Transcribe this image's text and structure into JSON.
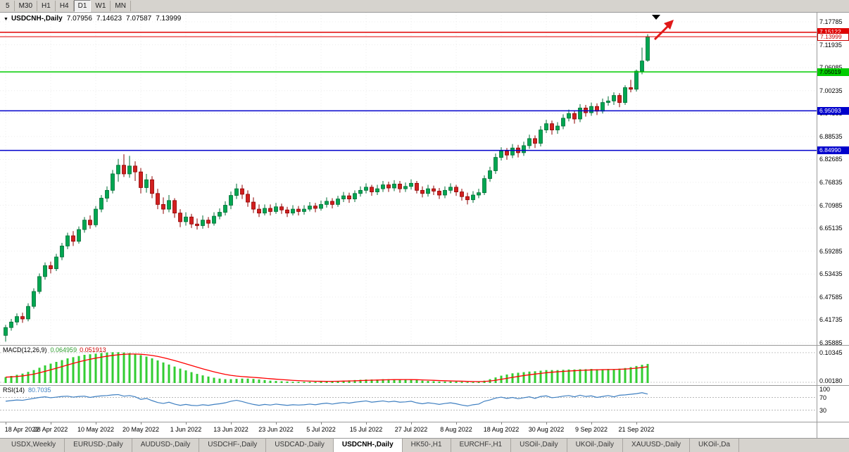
{
  "toolbar": {
    "timeframes": [
      {
        "label": "5"
      },
      {
        "label": "M30"
      },
      {
        "label": "H1"
      },
      {
        "label": "H4"
      },
      {
        "label": "D1",
        "active": true
      },
      {
        "label": "W1"
      },
      {
        "label": "MN"
      }
    ]
  },
  "chart_header": {
    "dropdown_icon": "▼",
    "symbol": "USDCNH-,Daily",
    "open": "7.07956",
    "high": "7.14623",
    "low": "7.07587",
    "close": "7.13999"
  },
  "annotations": {
    "top_marker": "down-triangle",
    "trend_arrow": "red-up-right-arrow"
  },
  "chart_data": [
    {
      "id": "price",
      "type": "candlestick",
      "title": "USDCNH-,Daily",
      "x_labels": [
        "18 Apr 2022",
        "28 Apr 2022",
        "10 May 2022",
        "20 May 2022",
        "1 Jun 2022",
        "13 Jun 2022",
        "23 Jun 2022",
        "5 Jul 2022",
        "15 Jul 2022",
        "27 Jul 2022",
        "8 Aug 2022",
        "18 Aug 2022",
        "30 Aug 2022",
        "9 Sep 2022",
        "21 Sep 2022"
      ],
      "x_label_indices": [
        0,
        8,
        16,
        24,
        32,
        40,
        48,
        56,
        64,
        72,
        80,
        88,
        96,
        104,
        112
      ],
      "y_axis": {
        "range": [
          6.3535,
          7.2012
        ],
        "gridline_labels": [
          "7.17785",
          "7.11935",
          "7.06085",
          "7.00235",
          "6.94385",
          "6.88535",
          "6.82685",
          "6.76835",
          "6.70985",
          "6.65135",
          "6.59285",
          "6.53435",
          "6.47585",
          "6.41735",
          "6.35885"
        ]
      },
      "levels": [
        {
          "price": 7.15122,
          "label": "7.15122",
          "color": "#e00000",
          "width": 1.5,
          "badge_bg": "#e00000",
          "badge_fg": "#ffffff"
        },
        {
          "price": 7.13999,
          "label": "7.13999",
          "color": "#e00000",
          "width": 1,
          "badge_bg": "#ffffff",
          "badge_fg": "#cc0000",
          "badge_border": "#cc0000"
        },
        {
          "price": 7.05019,
          "label": "7.05019",
          "color": "#00cc00",
          "width": 1.5,
          "badge_bg": "#00cc00",
          "badge_fg": "#000000"
        },
        {
          "price": 6.95093,
          "label": "6.95093",
          "color": "#0000cc",
          "width": 1.5,
          "badge_bg": "#0000cc",
          "badge_fg": "#ffffff"
        },
        {
          "price": 6.8499,
          "label": "6.84990",
          "color": "#0000cc",
          "width": 1.5,
          "badge_bg": "#0000cc",
          "badge_fg": "#ffffff"
        }
      ],
      "up_color": "#00a651",
      "up_border": "#006e35",
      "down_color": "#d21f1f",
      "down_border": "#8e0000",
      "candles": [
        [
          6.378,
          6.405,
          6.362,
          6.398
        ],
        [
          6.398,
          6.42,
          6.39,
          6.412
        ],
        [
          6.412,
          6.434,
          6.404,
          6.426
        ],
        [
          6.426,
          6.436,
          6.41,
          6.42
        ],
        [
          6.42,
          6.46,
          6.414,
          6.452
        ],
        [
          6.452,
          6.498,
          6.446,
          6.49
        ],
        [
          6.49,
          6.536,
          6.484,
          6.528
        ],
        [
          6.528,
          6.564,
          6.52,
          6.556
        ],
        [
          6.556,
          6.566,
          6.536,
          6.548
        ],
        [
          6.548,
          6.586,
          6.542,
          6.578
        ],
        [
          6.578,
          6.614,
          6.57,
          6.606
        ],
        [
          6.606,
          6.64,
          6.598,
          6.632
        ],
        [
          6.632,
          6.644,
          6.606,
          6.618
        ],
        [
          6.618,
          6.656,
          6.612,
          6.648
        ],
        [
          6.648,
          6.68,
          6.64,
          6.672
        ],
        [
          6.672,
          6.684,
          6.65,
          6.66
        ],
        [
          6.66,
          6.708,
          6.654,
          6.7
        ],
        [
          6.7,
          6.736,
          6.692,
          6.728
        ],
        [
          6.728,
          6.758,
          6.718,
          6.748
        ],
        [
          6.748,
          6.8,
          6.74,
          6.79
        ],
        [
          6.79,
          6.828,
          6.77,
          6.812
        ],
        [
          6.812,
          6.84,
          6.782,
          6.79
        ],
        [
          6.79,
          6.836,
          6.78,
          6.81
        ],
        [
          6.81,
          6.822,
          6.772,
          6.795
        ],
        [
          6.795,
          6.805,
          6.74,
          6.755
        ],
        [
          6.755,
          6.79,
          6.742,
          6.775
        ],
        [
          6.775,
          6.784,
          6.728,
          6.74
        ],
        [
          6.74,
          6.752,
          6.7,
          6.712
        ],
        [
          6.712,
          6.73,
          6.688,
          6.7
        ],
        [
          6.7,
          6.736,
          6.692,
          6.722
        ],
        [
          6.722,
          6.728,
          6.678,
          6.69
        ],
        [
          6.69,
          6.7,
          6.654,
          6.668
        ],
        [
          6.668,
          6.692,
          6.658,
          6.68
        ],
        [
          6.68,
          6.688,
          6.652,
          6.662
        ],
        [
          6.662,
          6.676,
          6.648,
          6.658
        ],
        [
          6.658,
          6.684,
          6.65,
          6.672
        ],
        [
          6.672,
          6.68,
          6.652,
          6.664
        ],
        [
          6.664,
          6.692,
          6.658,
          6.682
        ],
        [
          6.682,
          6.702,
          6.674,
          6.692
        ],
        [
          6.692,
          6.72,
          6.684,
          6.71
        ],
        [
          6.71,
          6.745,
          6.7,
          6.735
        ],
        [
          6.735,
          6.765,
          6.726,
          6.752
        ],
        [
          6.752,
          6.762,
          6.726,
          6.738
        ],
        [
          6.738,
          6.748,
          6.706,
          6.718
        ],
        [
          6.718,
          6.73,
          6.69,
          6.7
        ],
        [
          6.7,
          6.712,
          6.68,
          6.69
        ],
        [
          6.69,
          6.712,
          6.684,
          6.702
        ],
        [
          6.702,
          6.712,
          6.684,
          6.694
        ],
        [
          6.694,
          6.716,
          6.688,
          6.706
        ],
        [
          6.706,
          6.714,
          6.688,
          6.698
        ],
        [
          6.698,
          6.706,
          6.68,
          6.69
        ],
        [
          6.69,
          6.71,
          6.684,
          6.7
        ],
        [
          6.7,
          6.708,
          6.684,
          6.694
        ],
        [
          6.694,
          6.71,
          6.686,
          6.7
        ],
        [
          6.7,
          6.718,
          6.694,
          6.708
        ],
        [
          6.708,
          6.716,
          6.692,
          6.702
        ],
        [
          6.702,
          6.722,
          6.696,
          6.712
        ],
        [
          6.712,
          6.73,
          6.704,
          6.72
        ],
        [
          6.72,
          6.728,
          6.702,
          6.712
        ],
        [
          6.712,
          6.734,
          6.706,
          6.726
        ],
        [
          6.726,
          6.744,
          6.718,
          6.734
        ],
        [
          6.734,
          6.742,
          6.716,
          6.726
        ],
        [
          6.726,
          6.748,
          6.718,
          6.74
        ],
        [
          6.74,
          6.758,
          6.732,
          6.748
        ],
        [
          6.748,
          6.766,
          6.74,
          6.756
        ],
        [
          6.756,
          6.762,
          6.734,
          6.744
        ],
        [
          6.744,
          6.762,
          6.736,
          6.752
        ],
        [
          6.752,
          6.772,
          6.744,
          6.762
        ],
        [
          6.762,
          6.77,
          6.744,
          6.754
        ],
        [
          6.754,
          6.774,
          6.746,
          6.764
        ],
        [
          6.764,
          6.772,
          6.742,
          6.752
        ],
        [
          6.752,
          6.768,
          6.744,
          6.758
        ],
        [
          6.758,
          6.776,
          6.75,
          6.766
        ],
        [
          6.766,
          6.772,
          6.74,
          6.748
        ],
        [
          6.748,
          6.758,
          6.73,
          6.74
        ],
        [
          6.74,
          6.762,
          6.732,
          6.752
        ],
        [
          6.752,
          6.76,
          6.736,
          6.746
        ],
        [
          6.746,
          6.754,
          6.726,
          6.736
        ],
        [
          6.736,
          6.758,
          6.728,
          6.748
        ],
        [
          6.748,
          6.766,
          6.74,
          6.756
        ],
        [
          6.756,
          6.762,
          6.734,
          6.744
        ],
        [
          6.744,
          6.752,
          6.722,
          6.732
        ],
        [
          6.732,
          6.742,
          6.712,
          6.724
        ],
        [
          6.724,
          6.746,
          6.716,
          6.736
        ],
        [
          6.736,
          6.752,
          6.728,
          6.742
        ],
        [
          6.742,
          6.786,
          6.736,
          6.778
        ],
        [
          6.778,
          6.808,
          6.77,
          6.798
        ],
        [
          6.798,
          6.842,
          6.79,
          6.832
        ],
        [
          6.832,
          6.858,
          6.824,
          6.848
        ],
        [
          6.848,
          6.856,
          6.826,
          6.838
        ],
        [
          6.838,
          6.866,
          6.83,
          6.856
        ],
        [
          6.856,
          6.864,
          6.832,
          6.844
        ],
        [
          6.844,
          6.872,
          6.836,
          6.862
        ],
        [
          6.862,
          6.89,
          6.854,
          6.88
        ],
        [
          6.88,
          6.888,
          6.856,
          6.868
        ],
        [
          6.868,
          6.912,
          6.86,
          6.902
        ],
        [
          6.902,
          6.928,
          6.894,
          6.918
        ],
        [
          6.918,
          6.926,
          6.89,
          6.902
        ],
        [
          6.902,
          6.922,
          6.892,
          6.912
        ],
        [
          6.912,
          6.942,
          6.904,
          6.932
        ],
        [
          6.932,
          6.954,
          6.924,
          6.944
        ],
        [
          6.944,
          6.952,
          6.918,
          6.93
        ],
        [
          6.93,
          6.968,
          6.922,
          6.958
        ],
        [
          6.958,
          6.966,
          6.936,
          6.946
        ],
        [
          6.946,
          6.972,
          6.938,
          6.962
        ],
        [
          6.962,
          6.97,
          6.94,
          6.95
        ],
        [
          6.95,
          6.982,
          6.944,
          6.972
        ],
        [
          6.972,
          6.988,
          6.964,
          6.976
        ],
        [
          6.976,
          6.998,
          6.966,
          6.99
        ],
        [
          6.99,
          6.996,
          6.96,
          6.972
        ],
        [
          6.972,
          7.016,
          6.966,
          7.01
        ],
        [
          7.01,
          7.03,
          6.998,
          7.006
        ],
        [
          7.006,
          7.056,
          7.0,
          7.052
        ],
        [
          7.052,
          7.112,
          7.044,
          7.078
        ],
        [
          7.0796,
          7.1462,
          7.0759,
          7.14
        ]
      ]
    },
    {
      "id": "macd",
      "type": "bar",
      "name": "MACD(12,26,9)",
      "value": "0.064959",
      "signal_value": "0.051913",
      "axis_labels": [
        {
          "text": "0.10345",
          "value": 0.10345
        },
        {
          "text": "0.00180",
          "value": 0.0018
        }
      ],
      "bar_color": "#32cd32",
      "signal_color": "#ff0000",
      "values": [
        0.02,
        0.024,
        0.028,
        0.032,
        0.038,
        0.044,
        0.052,
        0.06,
        0.066,
        0.072,
        0.078,
        0.084,
        0.088,
        0.092,
        0.096,
        0.098,
        0.1,
        0.102,
        0.104,
        0.105,
        0.105,
        0.104,
        0.102,
        0.099,
        0.095,
        0.09,
        0.084,
        0.077,
        0.07,
        0.063,
        0.056,
        0.049,
        0.043,
        0.037,
        0.031,
        0.026,
        0.022,
        0.018,
        0.015,
        0.013,
        0.013,
        0.014,
        0.015,
        0.015,
        0.014,
        0.012,
        0.01,
        0.008,
        0.007,
        0.006,
        0.005,
        0.004,
        0.004,
        0.004,
        0.004,
        0.004,
        0.005,
        0.005,
        0.006,
        0.007,
        0.008,
        0.009,
        0.01,
        0.011,
        0.012,
        0.012,
        0.012,
        0.013,
        0.013,
        0.013,
        0.012,
        0.012,
        0.011,
        0.01,
        0.008,
        0.007,
        0.006,
        0.005,
        0.005,
        0.005,
        0.005,
        0.004,
        0.003,
        0.003,
        0.004,
        0.008,
        0.013,
        0.019,
        0.025,
        0.029,
        0.033,
        0.035,
        0.037,
        0.039,
        0.04,
        0.042,
        0.044,
        0.044,
        0.044,
        0.045,
        0.046,
        0.046,
        0.047,
        0.047,
        0.048,
        0.047,
        0.047,
        0.048,
        0.047,
        0.049,
        0.051,
        0.054,
        0.058,
        0.062,
        0.065
      ]
    },
    {
      "id": "rsi",
      "type": "line",
      "name": "RSI(14)",
      "value": "80.7035",
      "axis_labels": [
        {
          "text": "100",
          "value": 100
        },
        {
          "text": "70",
          "value": 70
        },
        {
          "text": "30",
          "value": 30
        }
      ],
      "levels": [
        70,
        30
      ],
      "line_color": "#3e7fc1",
      "values": [
        58,
        60,
        62,
        61,
        64,
        67,
        70,
        72,
        69,
        71,
        73,
        74,
        71,
        73,
        74,
        70,
        73,
        75,
        76,
        78,
        79,
        74,
        76,
        72,
        64,
        67,
        60,
        54,
        51,
        55,
        49,
        45,
        48,
        45,
        44,
        47,
        45,
        48,
        50,
        53,
        58,
        61,
        57,
        52,
        48,
        45,
        48,
        46,
        49,
        47,
        45,
        47,
        46,
        47,
        49,
        47,
        50,
        52,
        49,
        52,
        54,
        52,
        55,
        57,
        59,
        55,
        57,
        59,
        56,
        58,
        55,
        56,
        58,
        53,
        50,
        53,
        51,
        48,
        51,
        53,
        50,
        46,
        43,
        47,
        49,
        58,
        62,
        68,
        71,
        67,
        70,
        66,
        69,
        72,
        67,
        73,
        75,
        69,
        71,
        74,
        76,
        72,
        77,
        73,
        75,
        70,
        73,
        76,
        72,
        77,
        78,
        80,
        82,
        85,
        80.7
      ]
    }
  ],
  "tabs": [
    {
      "label": "USDX,Weekly"
    },
    {
      "label": "EURUSD-,Daily"
    },
    {
      "label": "AUDUSD-,Daily"
    },
    {
      "label": "USDCHF-,Daily"
    },
    {
      "label": "USDCAD-,Daily"
    },
    {
      "label": "USDCNH-,Daily",
      "active": true
    },
    {
      "label": "HK50-,H1"
    },
    {
      "label": "EURCHF-,H1"
    },
    {
      "label": "USOil-,Daily"
    },
    {
      "label": "UKOil-,Daily"
    },
    {
      "label": "XAUUSD-,Daily"
    },
    {
      "label": "UKOil-,Da",
      "truncated": true
    }
  ]
}
